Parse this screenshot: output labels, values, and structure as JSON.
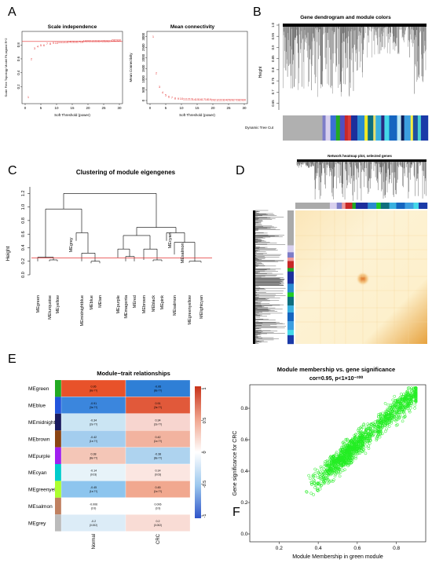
{
  "panels": {
    "a": {
      "letter": "A",
      "left": {
        "title": "Scale independence",
        "xlabel": "Soft Threshold (power)",
        "ylabel": "Scale Free Topology Model Fit,signed R^2",
        "xticks": [
          "0",
          "5",
          "10",
          "15",
          "20",
          "25",
          "30"
        ],
        "yticks": [
          "0.2",
          "0.4",
          "0.6",
          "0.8"
        ],
        "hline": 0.85,
        "chart_data": {
          "type": "scatter",
          "title": "Scale independence",
          "xlabel": "Soft Threshold (power)",
          "ylabel": "Scale Free Topology Model Fit,signed R^2",
          "xlim": [
            0,
            30
          ],
          "ylim": [
            0,
            0.95
          ],
          "x": [
            1,
            2,
            3,
            4,
            5,
            6,
            7,
            8,
            9,
            10,
            11,
            12,
            13,
            14,
            15,
            16,
            17,
            18,
            19,
            20,
            21,
            22,
            23,
            24,
            25,
            26,
            27,
            28,
            29,
            30
          ],
          "y": [
            0.05,
            0.6,
            0.75,
            0.78,
            0.8,
            0.8,
            0.82,
            0.82,
            0.83,
            0.83,
            0.84,
            0.84,
            0.84,
            0.85,
            0.85,
            0.85,
            0.85,
            0.85,
            0.86,
            0.86,
            0.86,
            0.86,
            0.86,
            0.86,
            0.86,
            0.86,
            0.86,
            0.87,
            0.87,
            0.87
          ]
        }
      },
      "right": {
        "title": "Mean connectivity",
        "xlabel": "Soft Threshold (power)",
        "ylabel": "Mean Connectivity",
        "xticks": [
          "0",
          "5",
          "10",
          "15",
          "20",
          "25",
          "30"
        ],
        "yticks": [
          "0",
          "500",
          "1000",
          "1500",
          "2000",
          "2500",
          "3000"
        ],
        "chart_data": {
          "type": "scatter",
          "title": "Mean connectivity",
          "xlabel": "Soft Threshold (power)",
          "ylabel": "Mean Connectivity",
          "xlim": [
            0,
            30
          ],
          "ylim": [
            0,
            3100
          ],
          "x": [
            1,
            2,
            3,
            4,
            5,
            6,
            7,
            8,
            9,
            10,
            11,
            12,
            13,
            14,
            15,
            16,
            17,
            18,
            19,
            20,
            21,
            22,
            23,
            24,
            25,
            26,
            27,
            28,
            29,
            30
          ],
          "y": [
            3000,
            1300,
            650,
            380,
            250,
            180,
            140,
            110,
            95,
            85,
            75,
            70,
            65,
            60,
            58,
            55,
            53,
            50,
            48,
            46,
            45,
            44,
            43,
            42,
            41,
            40,
            39,
            38,
            37,
            36
          ]
        }
      }
    },
    "b": {
      "letter": "B",
      "title": "Gene dendrogram and module colors",
      "ylabel": "Height",
      "yticks": [
        "0.65",
        "0.7",
        "0.75",
        "0.8",
        "0.85",
        "0.9",
        "0.95",
        "1.0"
      ],
      "rowlabel": "Dynamic Tree Cut"
    },
    "c": {
      "letter": "C",
      "title": "Clustering of module eigengenes",
      "ylabel": "Height",
      "yticks": [
        "0.0",
        "0.2",
        "0.4",
        "0.6",
        "0.8",
        "1.0",
        "1.2"
      ],
      "cut_height": 0.25,
      "leaves": [
        "MEgreen",
        "MEturquoise",
        "MEyellow",
        "MEmidnightblue",
        "MEblue",
        "MEtan",
        "MEpurple",
        "MEmagenta",
        "MEred",
        "MEbrown",
        "MEblack",
        "MEpink",
        "MEsalmon",
        "MEgreenyellow",
        "MElightcyan"
      ],
      "labels_inner": [
        "MEgrey",
        "MEcyan",
        "MEsalmon"
      ]
    },
    "d": {
      "letter": "D",
      "title": "Network heatmap plot, selected genes"
    },
    "e": {
      "letter": "E",
      "title": "Module−trait relationships",
      "columns": [
        "Normal",
        "CRC"
      ],
      "legend_ticks": [
        "1",
        "0.5",
        "0",
        "-0.5",
        "-1"
      ],
      "rows": [
        {
          "name": "MEgreen",
          "color": "#22aa22",
          "cells": [
            {
              "t": "0.95\n(8e-??)",
              "c": "#e8522a"
            },
            {
              "t": "-0.95\n(8e-??)",
              "c": "#2f7fd6"
            }
          ]
        },
        {
          "name": "MEblue",
          "color": "#2255dd",
          "cells": [
            {
              "t": "-0.91\n(3e-??)",
              "c": "#3b86dd"
            },
            {
              "t": "0.91\n(3e-??)",
              "c": "#e1593a"
            }
          ]
        },
        {
          "name": "MEmidnightblue",
          "color": "#1a1a5e",
          "cells": [
            {
              "t": "-0.34\n(2e-??)",
              "c": "#cbe5f3"
            },
            {
              "t": "0.34\n(2e-??)",
              "c": "#f7d5cf"
            }
          ]
        },
        {
          "name": "MEbrown",
          "color": "#8b4513",
          "cells": [
            {
              "t": "-0.42\n(1e-??)",
              "c": "#a3cdee"
            },
            {
              "t": "0.42\n(1e-??)",
              "c": "#f2b39f"
            }
          ]
        },
        {
          "name": "MEpurple",
          "color": "#a020f0",
          "cells": [
            {
              "t": "0.38\n(8e-??)",
              "c": "#f4c6b7"
            },
            {
              "t": "-0.38\n(8e-??)",
              "c": "#aed3ef"
            }
          ]
        },
        {
          "name": "MEcyan",
          "color": "#00cccc",
          "cells": [
            {
              "t": "-0.14\n(0.03)",
              "c": "#e7f3f9"
            },
            {
              "t": "0.14\n(0.03)",
              "c": "#fbe6e1"
            }
          ]
        },
        {
          "name": "MEgreenyellow",
          "color": "#adff2f",
          "cells": [
            {
              "t": "-0.45\n(1e-??)",
              "c": "#8dc5ee"
            },
            {
              "t": "0.45\n(1e-??)",
              "c": "#f1a88f"
            }
          ]
        },
        {
          "name": "MEsalmon",
          "color": "#c08060",
          "cells": [
            {
              "t": "-0.006\n(0.9)",
              "c": "#ffffff"
            },
            {
              "t": "0.006\n(0.9)",
              "c": "#ffffff"
            }
          ]
        },
        {
          "name": "MEgrey",
          "color": "#bbbbbb",
          "cells": [
            {
              "t": "-0.2\n(0.002)",
              "c": "#dcecf7"
            },
            {
              "t": "0.2\n(0.002)",
              "c": "#f9dcd5"
            }
          ]
        }
      ]
    },
    "f": {
      "letter": "F",
      "title": "Module membership vs. gene significance",
      "subtitle": "cor=0.95, p<1×10⁻²⁰⁰",
      "xlabel": "Module Membership in green module",
      "ylabel": "Gene significance for CRC",
      "xticks": [
        "0.2",
        "0.4",
        "0.6",
        "0.8"
      ],
      "yticks": [
        "0.0",
        "0.2",
        "0.4",
        "0.6",
        "0.8"
      ],
      "chart_data": {
        "type": "scatter",
        "title": "Module membership vs. gene significance",
        "xlabel": "Module Membership in green module",
        "ylabel": "Gene significance for CRC",
        "xlim": [
          0.05,
          0.95
        ],
        "ylim": [
          -0.05,
          0.95
        ],
        "trend": {
          "x": [
            0.1,
            0.9
          ],
          "y": [
            0.02,
            0.9
          ]
        },
        "color": "#22ee22"
      }
    }
  },
  "colors": {
    "red": "#e33333",
    "green": "#22dd22",
    "heat_bg": "#fdf5d8",
    "heat_hot": "#e07a14"
  }
}
